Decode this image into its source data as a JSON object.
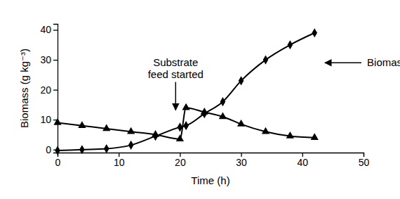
{
  "chart_data": {
    "type": "line",
    "x_label": "Time (h)",
    "y_label": "Biomass (g kg⁻³)",
    "x": [
      0,
      4,
      8,
      12,
      16,
      20,
      21,
      24,
      27,
      30,
      34,
      38,
      42
    ],
    "series": [
      {
        "color": "#000000",
        "marker": "diamond",
        "line_style": "solid",
        "values": [
          -0.3,
          0,
          0.3,
          1.5,
          4.5,
          7.5,
          8,
          12,
          16,
          23,
          30,
          35,
          39
        ]
      },
      {
        "color": "#000000",
        "marker": "triangle",
        "line_style": "solid",
        "values": [
          9,
          8,
          7,
          6,
          5,
          3.5,
          14,
          12.5,
          11,
          8.5,
          6,
          4.5,
          4
        ]
      }
    ],
    "xlim": [
      0,
      50
    ],
    "xticks": [
      0,
      10,
      20,
      30,
      40,
      50
    ],
    "ylim": [
      -1,
      42
    ],
    "yticks": [
      0,
      10,
      20,
      30,
      40
    ],
    "grid": false,
    "annotations": [
      {
        "text": [
          "Substrate",
          "feed started"
        ],
        "x": 19.3,
        "y": 13.2
      },
      {
        "text": [
          "Biomass"
        ],
        "x": 43.7,
        "y": 29
      }
    ]
  }
}
